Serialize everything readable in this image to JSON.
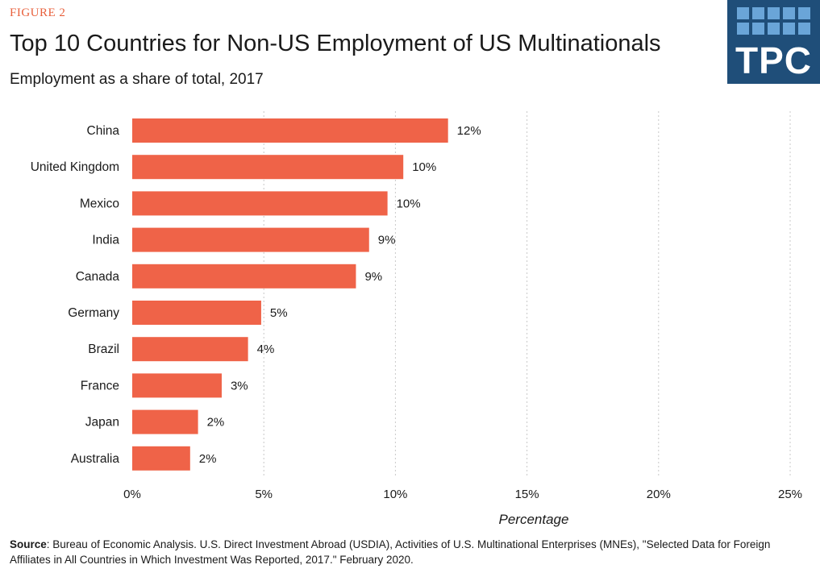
{
  "header": {
    "figure_label": "FIGURE 2",
    "title": "Top 10 Countries for Non-US Employment of US Multinationals",
    "subtitle": "Employment as a share of total, 2017"
  },
  "logo": {
    "text": "TPC",
    "color": "#1f4e79",
    "tile_color": "#6aa5d8"
  },
  "colors": {
    "bar": "#ef6348",
    "accent": "#e8603c",
    "grid": "#c8c8c8"
  },
  "chart_data": {
    "type": "bar",
    "orientation": "horizontal",
    "title": "Top 10 Countries for Non-US Employment of US Multinationals",
    "subtitle": "Employment as a share of total, 2017",
    "xlabel": "Percentage",
    "ylabel": "",
    "categories": [
      "China",
      "United Kingdom",
      "Mexico",
      "India",
      "Canada",
      "Germany",
      "Brazil",
      "France",
      "Japan",
      "Australia"
    ],
    "values": [
      12.0,
      10.3,
      9.7,
      9.0,
      8.5,
      4.9,
      4.4,
      3.4,
      2.5,
      2.2
    ],
    "data_labels": [
      "12%",
      "10%",
      "10%",
      "9%",
      "9%",
      "5%",
      "4%",
      "3%",
      "2%",
      "2%"
    ],
    "xlim": [
      0,
      25
    ],
    "xticks": [
      0,
      5,
      10,
      15,
      20,
      25
    ],
    "xtick_labels": [
      "0%",
      "5%",
      "10%",
      "15%",
      "20%",
      "25%"
    ],
    "grid": "vertical dotted",
    "legend": "none"
  },
  "source": {
    "label": "Source",
    "text": ": Bureau of Economic Analysis. U.S. Direct Investment Abroad (USDIA), Activities of U.S. Multinational Enterprises (MNEs), \"Selected Data for Foreign Affiliates in All Countries in Which Investment Was Reported, 2017.\" February 2020."
  }
}
